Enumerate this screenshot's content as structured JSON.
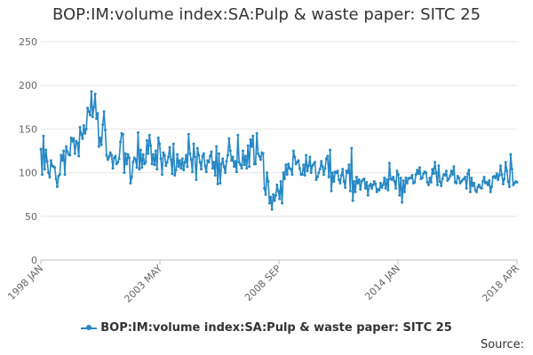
{
  "chart_data": {
    "type": "line",
    "title": "BOP:IM:volume index:SA:Pulp & waste paper: SITC 25",
    "xlabel": "",
    "ylabel": "",
    "ylim": [
      0,
      250
    ],
    "yticks": [
      0,
      50,
      100,
      150,
      200,
      250
    ],
    "xticks": [
      "1998 JAN",
      "2003 MAY",
      "2008 SEP",
      "2014 JAN",
      "2018 APR"
    ],
    "x_start": "1998 JAN",
    "x_end": "2018 APR",
    "grid": true,
    "legend_position": "bottom",
    "series": [
      {
        "name": "BOP:IM:volume index:SA:Pulp & waste paper: SITC 25",
        "color": "#2688c5",
        "values": [
          127,
          98,
          142,
          104,
          126,
          113,
          100,
          95,
          114,
          108,
          107,
          106,
          93,
          84,
          96,
          98,
          120,
          114,
          125,
          98,
          130,
          124,
          121,
          120,
          140,
          136,
          139,
          122,
          136,
          134,
          119,
          152,
          144,
          139,
          154,
          145,
          150,
          174,
          170,
          166,
          193,
          164,
          175,
          190,
          162,
          168,
          130,
          140,
          132,
          155,
          170,
          149,
          120,
          115,
          118,
          123,
          120,
          105,
          117,
          119,
          110,
          112,
          116,
          135,
          145,
          144,
          100,
          122,
          110,
          121,
          117,
          88,
          95,
          112,
          117,
          115,
          106,
          146,
          104,
          126,
          106,
          121,
          110,
          112,
          137,
          122,
          143,
          131,
          110,
          121,
          109,
          125,
          104,
          140,
          133,
          116,
          98,
          123,
          120,
          108,
          112,
          118,
          129,
          115,
          99,
          133,
          97,
          103,
          121,
          107,
          114,
          105,
          116,
          103,
          112,
          120,
          107,
          144,
          122,
          115,
          101,
          133,
          118,
          92,
          128,
          120,
          112,
          104,
          119,
          122,
          108,
          101,
          114,
          112,
          119,
          124,
          105,
          112,
          97,
          130,
          87,
          122,
          88,
          110,
          116,
          107,
          100,
          113,
          120,
          139,
          125,
          114,
          118,
          107,
          113,
          101,
          143,
          112,
          109,
          105,
          125,
          109,
          119,
          105,
          131,
          107,
          138,
          130,
          142,
          110,
          110,
          145,
          122,
          119,
          115,
          123,
          122,
          82,
          75,
          100,
          90,
          65,
          72,
          58,
          75,
          68,
          74,
          86,
          79,
          70,
          90,
          65,
          100,
          93,
          109,
          98,
          110,
          105,
          104,
          98,
          125,
          118,
          110,
          112,
          114,
          105,
          98,
          98,
          109,
          97,
          120,
          102,
          108,
          118,
          100,
          108,
          110,
          112,
          92,
          95,
          100,
          104,
          113,
          107,
          98,
          105,
          116,
          119,
          95,
          126,
          79,
          100,
          90,
          101,
          100,
          102,
          92,
          88,
          97,
          104,
          90,
          83,
          102,
          100,
          109,
          79,
          128,
          68,
          90,
          78,
          95,
          88,
          92,
          81,
          90,
          92,
          93,
          82,
          89,
          74,
          85,
          87,
          82,
          86,
          90,
          87,
          78,
          81,
          80,
          88,
          83,
          86,
          94,
          82,
          92,
          80,
          111,
          93,
          92,
          95,
          90,
          82,
          102,
          98,
          74,
          94,
          66,
          91,
          78,
          94,
          88,
          93,
          94,
          94,
          97,
          88,
          89,
          98,
          103,
          99,
          106,
          93,
          94,
          99,
          101,
          100,
          89,
          86,
          94,
          89,
          104,
          99,
          112,
          100,
          86,
          108,
          90,
          85,
          93,
          98,
          97,
          102,
          91,
          93,
          96,
          102,
          98,
          107,
          89,
          88,
          96,
          94,
          88,
          90,
          92,
          93,
          95,
          82,
          99,
          103,
          78,
          94,
          85,
          88,
          80,
          78,
          84,
          86,
          83,
          82,
          90,
          95,
          88,
          89,
          86,
          91,
          78,
          84,
          95,
          96,
          94,
          99,
          92,
          97,
          108,
          98,
          87,
          93,
          112,
          102,
          90,
          84,
          121,
          104,
          86,
          88,
          90,
          89
        ]
      }
    ]
  },
  "source_label": "Source:"
}
